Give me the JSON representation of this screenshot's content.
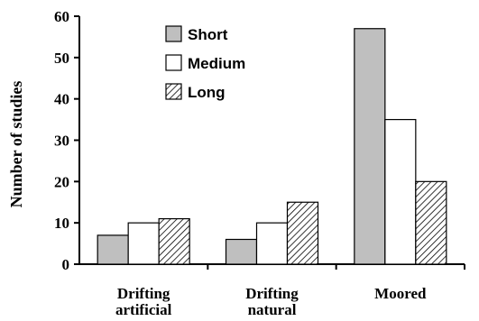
{
  "chart_data": {
    "type": "bar",
    "categories": [
      "Drifting\nartificial",
      "Drifting\nnatural",
      "Moored"
    ],
    "series": [
      {
        "name": "Short",
        "values": [
          7,
          6,
          57
        ],
        "fill": "#bfbfbf",
        "pattern": "solid"
      },
      {
        "name": "Medium",
        "values": [
          10,
          10,
          35
        ],
        "fill": "#ffffff",
        "pattern": "solid"
      },
      {
        "name": "Long",
        "values": [
          11,
          15,
          20
        ],
        "fill": "#ffffff",
        "pattern": "diagonal-hatch"
      }
    ],
    "title": "",
    "xlabel": "",
    "ylabel": "Number of studies",
    "ylim": [
      0,
      60
    ],
    "yticks": [
      0,
      10,
      20,
      30,
      40,
      50,
      60
    ],
    "grid": false,
    "legend": "top-center"
  }
}
